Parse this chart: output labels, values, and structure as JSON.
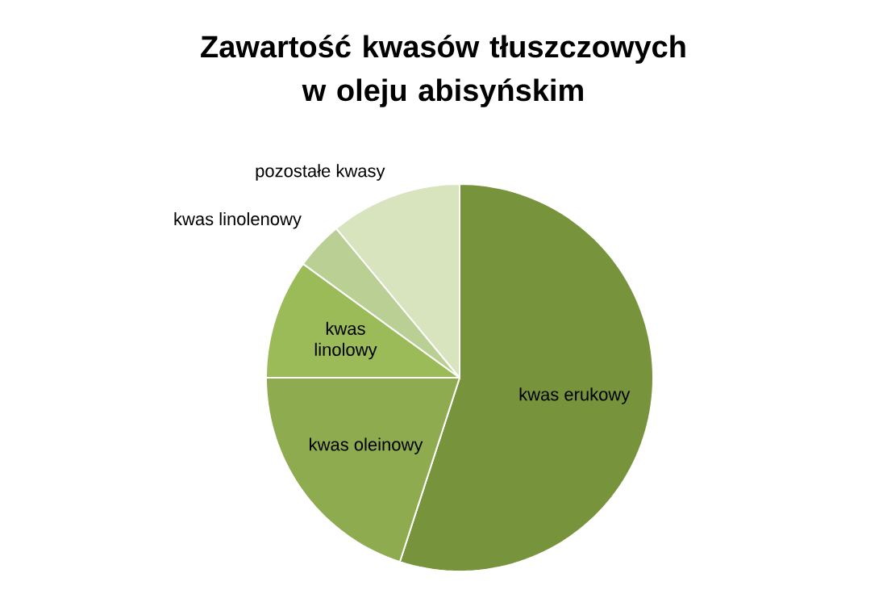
{
  "chart_data": {
    "type": "pie",
    "title": "Zawartość kwasów tłuszczowych w oleju abisyńskim",
    "categories": [
      "kwas erukowy",
      "kwas oleinowy",
      "kwas linolowy",
      "kwas linolenowy",
      "pozostałe kwasy"
    ],
    "values": [
      55,
      20,
      10,
      4,
      11
    ],
    "colors": [
      "#77933c",
      "#8eab4f",
      "#9bbb59",
      "#b9cf93",
      "#d7e4bd"
    ]
  }
}
